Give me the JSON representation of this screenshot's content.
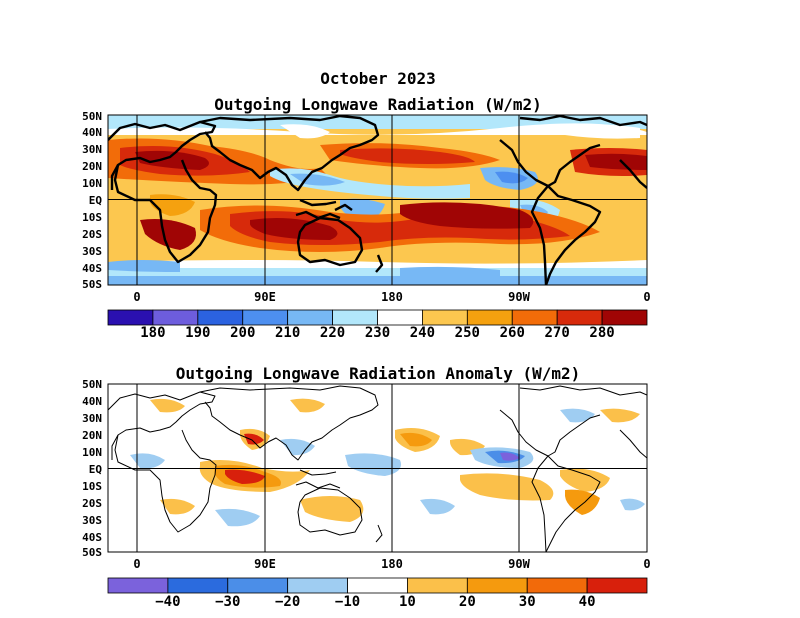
{
  "header": {
    "date": "October 2023",
    "top_title": "Outgoing Longwave Radiation (W/m2)",
    "bottom_title": "Outgoing Longwave Radiation Anomaly (W/m2)"
  },
  "lat_labels": [
    "50N",
    "40N",
    "30N",
    "20N",
    "10N",
    "EQ",
    "10S",
    "20S",
    "30S",
    "40S",
    "50S"
  ],
  "lon_labels": [
    "0",
    "90E",
    "180",
    "90W",
    "0"
  ],
  "top_colorbar": {
    "colors": [
      "#2a10b0",
      "#6d5ddd",
      "#2b62e0",
      "#4d8ff0",
      "#77b8f5",
      "#b2e7fb",
      "#ffffff",
      "#fcc74f",
      "#f5a10f",
      "#f26c09",
      "#d72a0b",
      "#a00505"
    ],
    "labels": [
      "180",
      "190",
      "200",
      "210",
      "220",
      "230",
      "240",
      "250",
      "260",
      "270",
      "280"
    ]
  },
  "bottom_colorbar": {
    "colors": [
      "#7b62dc",
      "#2b6bde",
      "#4b8ee8",
      "#9fcdf2",
      "#ffffff",
      "#fbc04a",
      "#f59a0e",
      "#f26a0a",
      "#d8200c"
    ],
    "labels": [
      "−40",
      "−30",
      "−20",
      "−10",
      "10",
      "20",
      "30",
      "40"
    ]
  }
}
